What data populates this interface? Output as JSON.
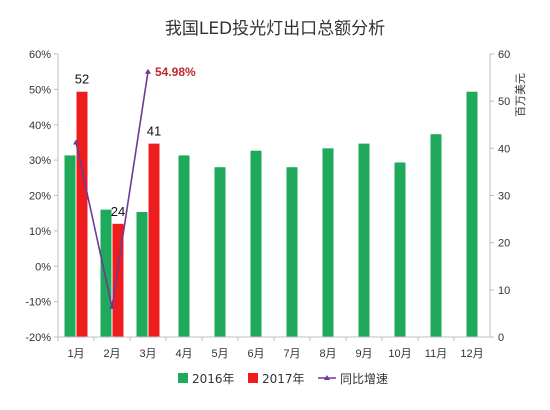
{
  "chart_data": {
    "type": "bar",
    "title": "我国LED投光灯出口总额分析",
    "ylabel_right": "百万美元",
    "categories": [
      "1月",
      "2月",
      "3月",
      "4月",
      "5月",
      "6月",
      "7月",
      "8月",
      "9月",
      "10月",
      "11月",
      "12月"
    ],
    "left_axis_ticks": [
      "60%",
      "50%",
      "40%",
      "30%",
      "20%",
      "10%",
      "0%",
      "-10%",
      "-20%"
    ],
    "right_axis_ticks": [
      "60",
      "50",
      "40",
      "30",
      "20",
      "10",
      "0"
    ],
    "ylim_left": [
      -20,
      60
    ],
    "ylim_right": [
      0,
      60
    ],
    "series": [
      {
        "name": "2016年",
        "axis": "right",
        "color": "#1fa95a",
        "values": [
          38.5,
          27,
          26.5,
          38.5,
          36,
          39.5,
          36,
          40,
          41,
          37,
          43,
          52
        ]
      },
      {
        "name": "2017年",
        "axis": "right",
        "color": "#ee1c1c",
        "values": [
          52,
          24,
          41,
          null,
          null,
          null,
          null,
          null,
          null,
          null,
          null,
          null
        ]
      },
      {
        "name": "同比增速",
        "axis": "left",
        "color": "#6f3a95",
        "type": "line",
        "values": [
          35,
          -11.5,
          54.98,
          null,
          null,
          null,
          null,
          null,
          null,
          null,
          null,
          null
        ]
      }
    ],
    "data_labels": [
      {
        "series": 1,
        "index": 0,
        "text": "52"
      },
      {
        "series": 1,
        "index": 1,
        "text": "24"
      },
      {
        "series": 1,
        "index": 2,
        "text": "41"
      }
    ],
    "annotation": {
      "text": "54.98%",
      "color": "#c0282b"
    },
    "legend_position": "bottom",
    "grid": false
  }
}
